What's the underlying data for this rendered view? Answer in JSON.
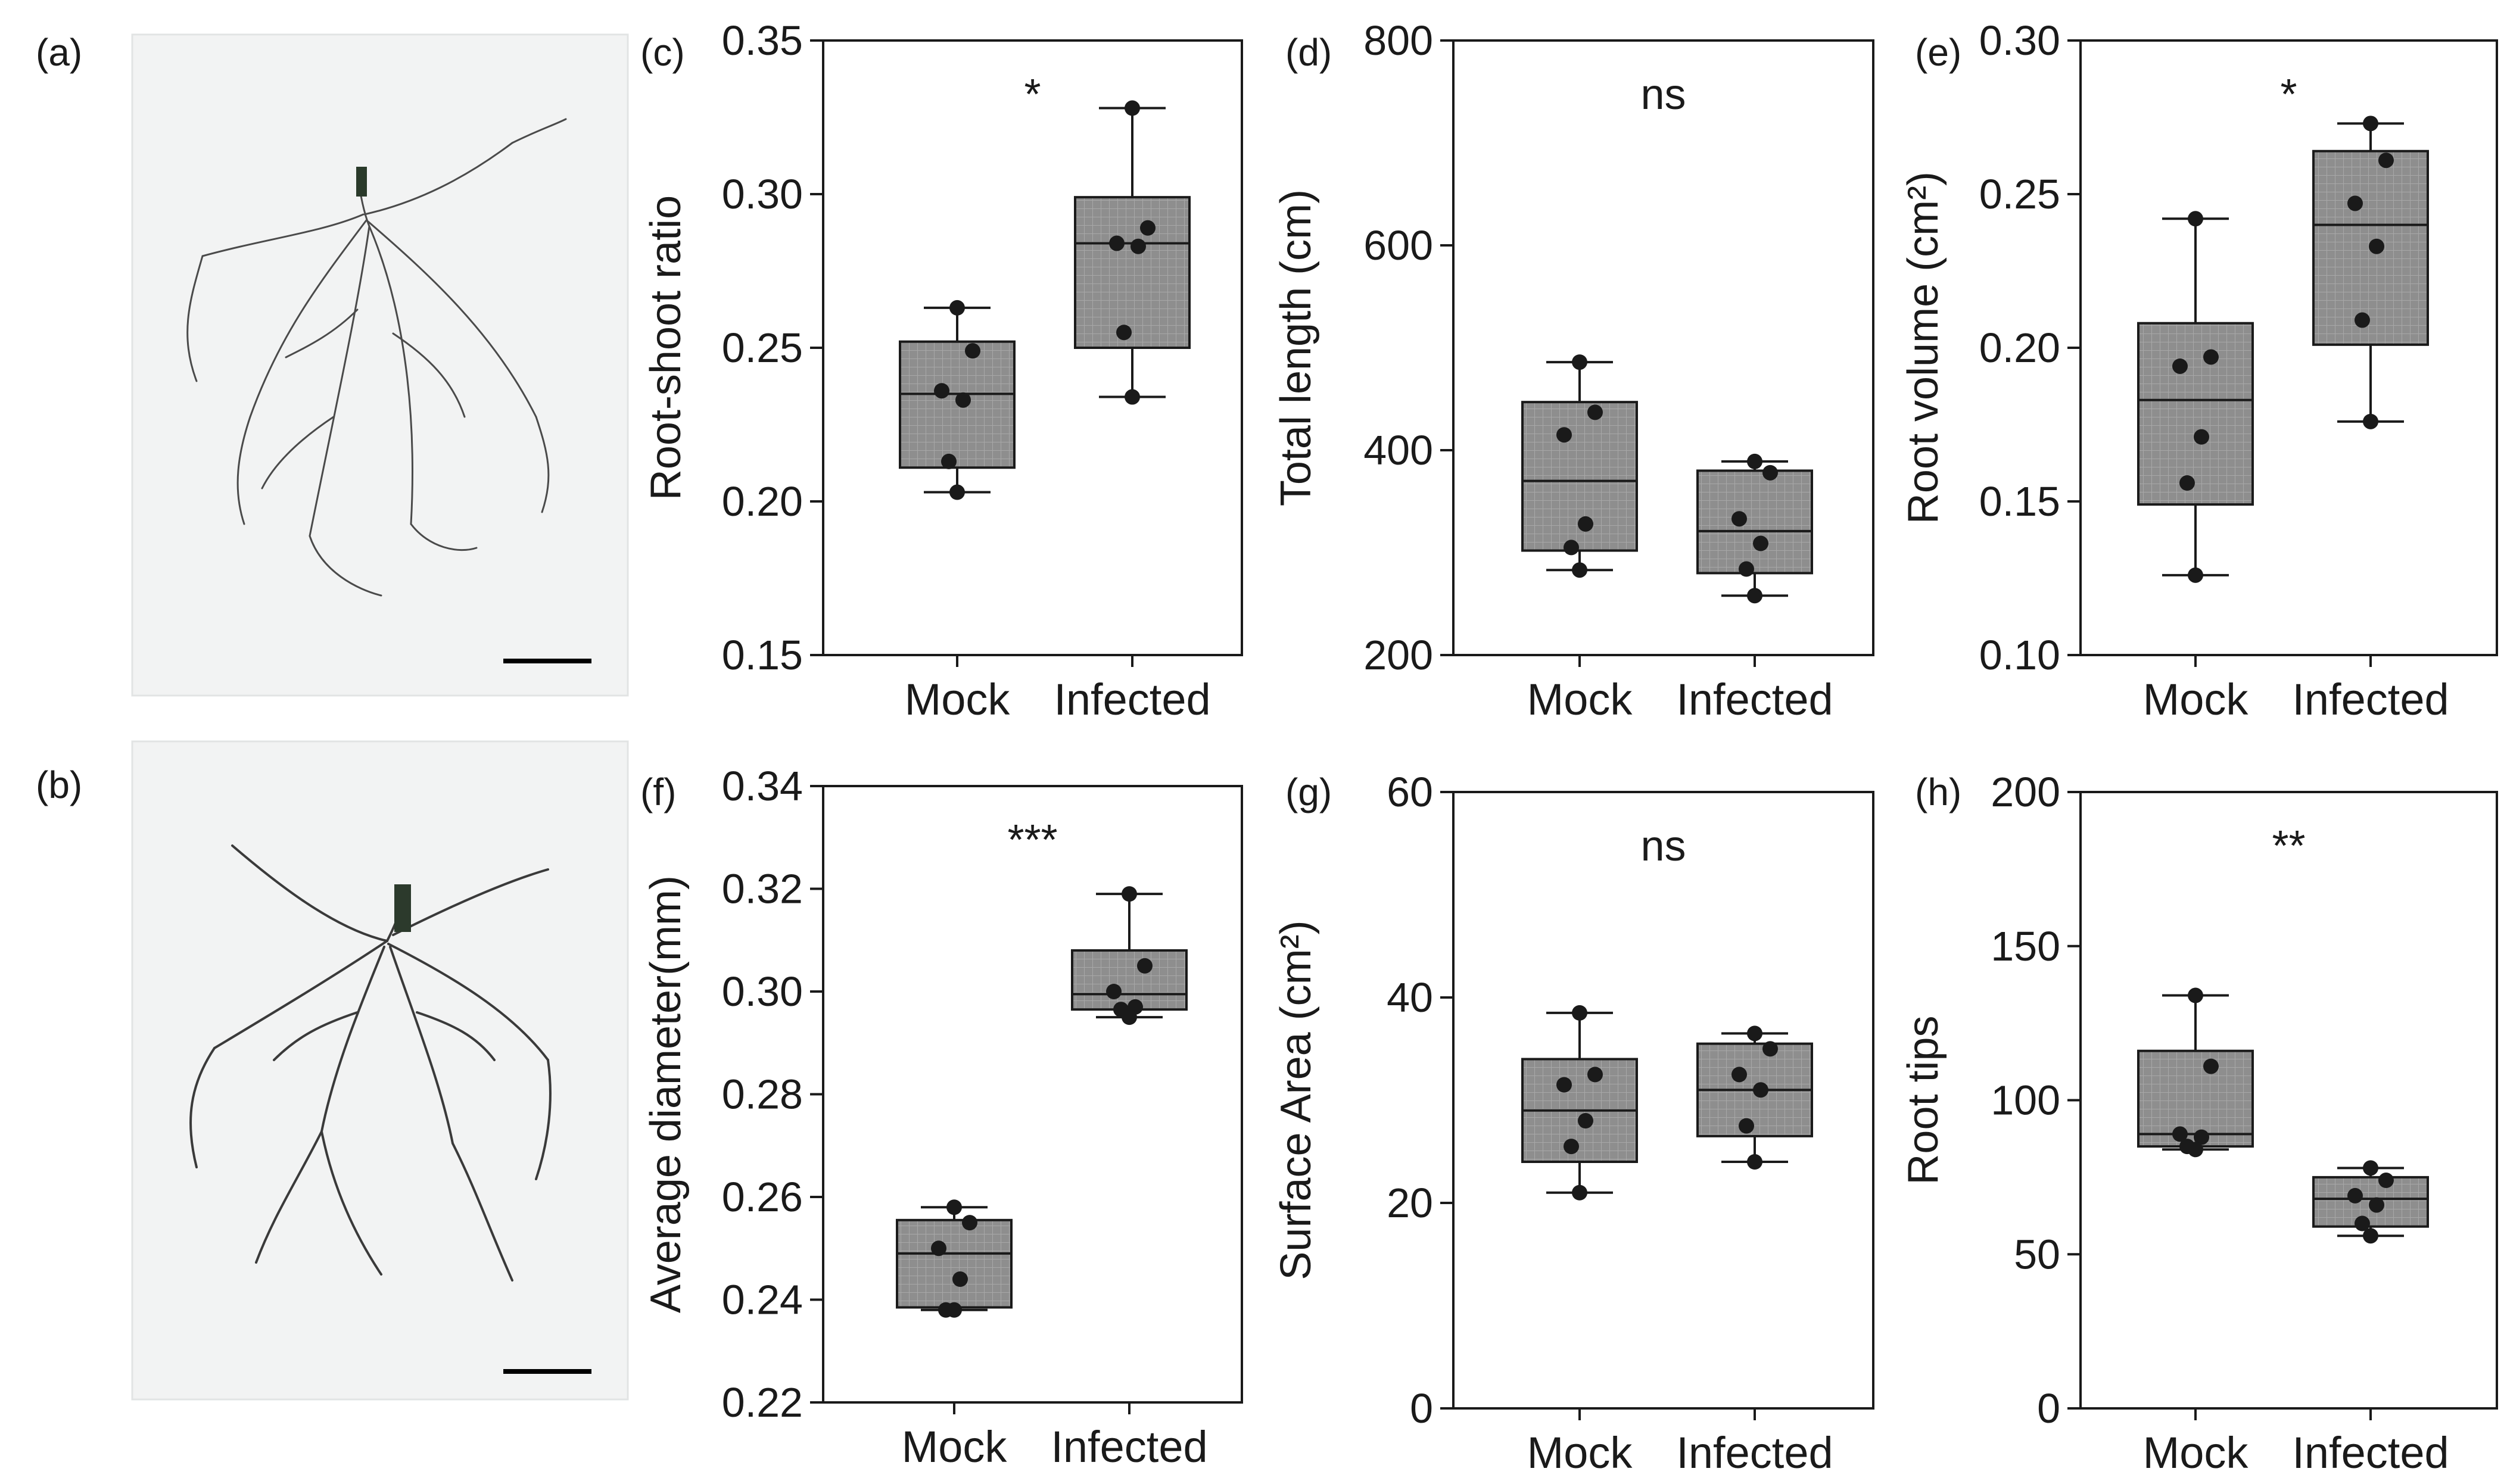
{
  "figure_labels": {
    "a": "(a)",
    "b": "(b)"
  },
  "photos": [
    {
      "id": "a",
      "label": "(a)",
      "description": "root system Mock"
    },
    {
      "id": "b",
      "label": "(b)",
      "description": "root system Infected"
    }
  ],
  "chart_data": [
    {
      "id": "c",
      "type": "box",
      "panel_label": "(c)",
      "ylabel": "Root-shoot ratio",
      "ylim": [
        0.15,
        0.35
      ],
      "yticks": [
        0.15,
        0.2,
        0.25,
        0.3,
        0.35
      ],
      "ytick_labels": [
        "0.15",
        "0.20",
        "0.25",
        "0.30",
        "0.35"
      ],
      "categories": [
        "Mock",
        "Infected"
      ],
      "significance": "*",
      "groups": [
        {
          "name": "Mock",
          "min": 0.203,
          "q1": 0.211,
          "median": 0.235,
          "q3": 0.252,
          "max": 0.263,
          "points": [
            0.263,
            0.249,
            0.236,
            0.233,
            0.213,
            0.203
          ]
        },
        {
          "name": "Infected",
          "min": 0.234,
          "q1": 0.25,
          "median": 0.284,
          "q3": 0.299,
          "max": 0.328,
          "points": [
            0.328,
            0.289,
            0.284,
            0.283,
            0.255,
            0.234
          ]
        }
      ]
    },
    {
      "id": "d",
      "type": "box",
      "panel_label": "(d)",
      "ylabel": "Total length (cm)",
      "ylim": [
        200,
        800
      ],
      "yticks": [
        200,
        400,
        600,
        800
      ],
      "ytick_labels": [
        "200",
        "400",
        "600",
        "800"
      ],
      "categories": [
        "Mock",
        "Infected"
      ],
      "significance": "ns",
      "groups": [
        {
          "name": "Mock",
          "min": 283,
          "q1": 302,
          "median": 370,
          "q3": 447,
          "max": 486,
          "points": [
            486,
            437,
            415,
            328,
            305,
            283
          ]
        },
        {
          "name": "Infected",
          "min": 258,
          "q1": 280,
          "median": 321,
          "q3": 380,
          "max": 389,
          "points": [
            389,
            378,
            333,
            309,
            284,
            258
          ]
        }
      ]
    },
    {
      "id": "e",
      "type": "box",
      "panel_label": "(e)",
      "ylabel": "Root volume (cm²)",
      "ylim": [
        0.1,
        0.3
      ],
      "yticks": [
        0.1,
        0.15,
        0.2,
        0.25,
        0.3
      ],
      "ytick_labels": [
        "0.10",
        "0.15",
        "0.20",
        "0.25",
        "0.30"
      ],
      "categories": [
        "Mock",
        "Infected"
      ],
      "significance": "*",
      "groups": [
        {
          "name": "Mock",
          "min": 0.126,
          "q1": 0.149,
          "median": 0.183,
          "q3": 0.208,
          "max": 0.242,
          "points": [
            0.242,
            0.197,
            0.194,
            0.171,
            0.156,
            0.126
          ]
        },
        {
          "name": "Infected",
          "min": 0.176,
          "q1": 0.201,
          "median": 0.24,
          "q3": 0.264,
          "max": 0.273,
          "points": [
            0.273,
            0.261,
            0.247,
            0.233,
            0.209,
            0.176
          ]
        }
      ]
    },
    {
      "id": "f",
      "type": "box",
      "panel_label": "(f)",
      "ylabel": "Average diameter(mm)",
      "ylim": [
        0.22,
        0.34
      ],
      "yticks": [
        0.22,
        0.24,
        0.26,
        0.28,
        0.3,
        0.32,
        0.34
      ],
      "ytick_labels": [
        "0.22",
        "0.24",
        "0.26",
        "0.28",
        "0.30",
        "0.32",
        "0.34"
      ],
      "categories": [
        "Mock",
        "Infected"
      ],
      "significance": "***",
      "groups": [
        {
          "name": "Mock",
          "min": 0.238,
          "q1": 0.2385,
          "median": 0.249,
          "q3": 0.2555,
          "max": 0.258,
          "points": [
            0.258,
            0.255,
            0.25,
            0.244,
            0.238,
            0.238
          ]
        },
        {
          "name": "Infected",
          "min": 0.295,
          "q1": 0.2965,
          "median": 0.2995,
          "q3": 0.308,
          "max": 0.319,
          "points": [
            0.319,
            0.305,
            0.3,
            0.297,
            0.2965,
            0.295
          ]
        }
      ]
    },
    {
      "id": "g",
      "type": "box",
      "panel_label": "(g)",
      "ylabel": "Surface Area (cm²)",
      "ylim": [
        0,
        60
      ],
      "yticks": [
        0,
        20,
        40,
        60
      ],
      "ytick_labels": [
        "0",
        "20",
        "40",
        "60"
      ],
      "categories": [
        "Mock",
        "Infected"
      ],
      "significance": "ns",
      "groups": [
        {
          "name": "Mock",
          "min": 21.0,
          "q1": 24.0,
          "median": 29.0,
          "q3": 34.0,
          "max": 38.5,
          "points": [
            38.5,
            32.5,
            31.5,
            28.0,
            25.5,
            21.0
          ]
        },
        {
          "name": "Infected",
          "min": 24.0,
          "q1": 26.5,
          "median": 31.0,
          "q3": 35.5,
          "max": 36.5,
          "points": [
            36.5,
            35.0,
            32.5,
            31.0,
            27.5,
            24.0
          ]
        }
      ]
    },
    {
      "id": "h",
      "type": "box",
      "panel_label": "(h)",
      "ylabel": "Root tips",
      "ylim": [
        0,
        200
      ],
      "yticks": [
        0,
        50,
        100,
        150,
        200
      ],
      "ytick_labels": [
        "0",
        "50",
        "100",
        "150",
        "200"
      ],
      "categories": [
        "Mock",
        "Infected"
      ],
      "significance": "**",
      "groups": [
        {
          "name": "Mock",
          "min": 84,
          "q1": 85,
          "median": 89,
          "q3": 116,
          "max": 134,
          "points": [
            134,
            111,
            89,
            88,
            85,
            84
          ]
        },
        {
          "name": "Infected",
          "min": 56,
          "q1": 59,
          "median": 68,
          "q3": 75,
          "max": 78,
          "points": [
            78,
            74,
            69,
            66,
            60,
            56
          ]
        }
      ]
    }
  ]
}
